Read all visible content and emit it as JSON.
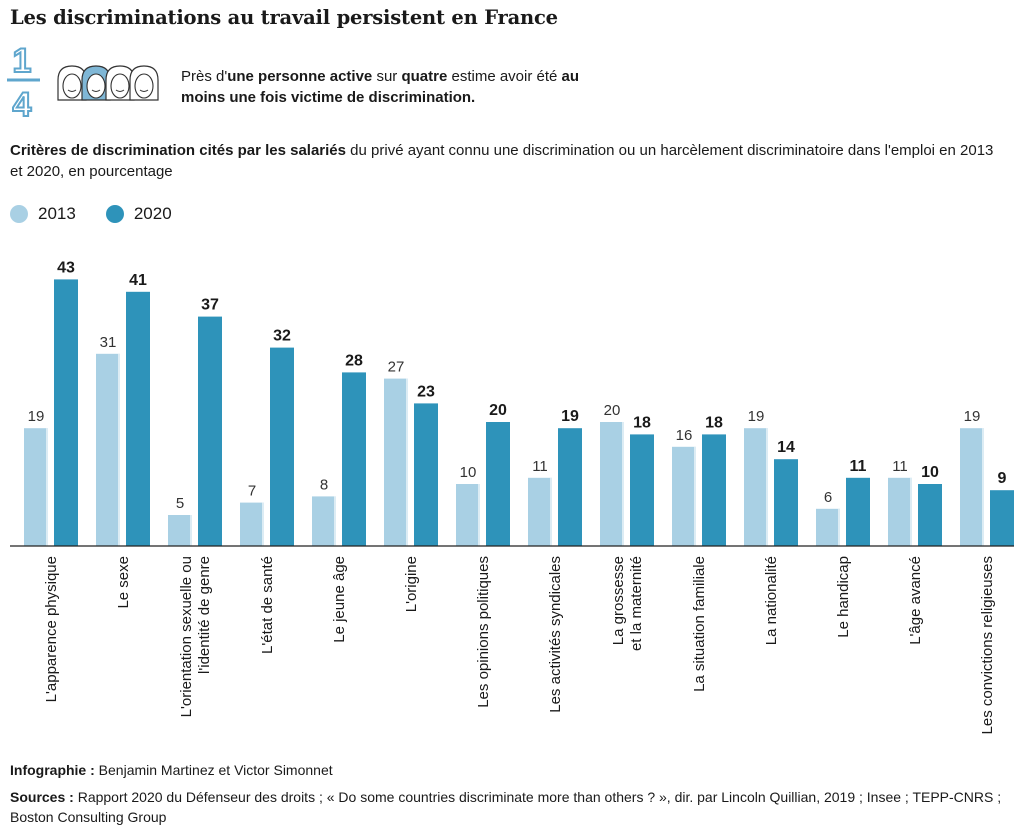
{
  "title": "Les discriminations au travail persistent en France",
  "fraction": {
    "numerator": "1",
    "denominator": "4"
  },
  "intro": {
    "p1": "Près d'",
    "b1": "une personne active",
    "p2": " sur ",
    "b2": "quatre",
    "p3": " estime avoir été ",
    "b3": "au moins une fois victime de discrimination."
  },
  "subtitle": {
    "bold": "Critères de discrimination cités par les salariés",
    "rest": " du privé ayant connu une discrimination ou un harcèlement discriminatoire dans l'emploi en 2013 et 2020, en pourcentage"
  },
  "colors": {
    "s2013": "#a9d0e4",
    "s2020": "#2e93ba",
    "people_accent": "#7fb7d6",
    "fraction": "#6fb1d4"
  },
  "chart_data": {
    "type": "bar",
    "categories": [
      "L'apparence physique",
      "Le sexe",
      "L'orientation sexuelle ou\nl'identité de genre",
      "L'état de santé",
      "Le jeune âge",
      "L'origine",
      "Les opinions politiques",
      "Les activités syndicales",
      "La grossesse\net la maternité",
      "La situation familiale",
      "La nationalité",
      "Le handicap",
      "L'âge avancé",
      "Les convictions religieuses"
    ],
    "series": [
      {
        "name": "2013",
        "values": [
          19,
          31,
          5,
          7,
          8,
          27,
          10,
          11,
          20,
          16,
          19,
          6,
          11,
          19
        ]
      },
      {
        "name": "2020",
        "values": [
          43,
          41,
          37,
          32,
          28,
          23,
          20,
          19,
          18,
          18,
          14,
          11,
          10,
          9
        ]
      }
    ],
    "ylim": [
      0,
      43
    ],
    "legend": "top-left",
    "grid": false
  },
  "credit": {
    "label": "Infographie :",
    "text": " Benjamin Martinez et Victor Simonnet"
  },
  "sources": {
    "label": "Sources :",
    "text": " Rapport 2020 du Défenseur des droits ; « Do some countries discriminate more than others ? », dir. par Lincoln Quillian, 2019 ; Insee ; TEPP-CNRS ; Boston Consulting Group"
  }
}
